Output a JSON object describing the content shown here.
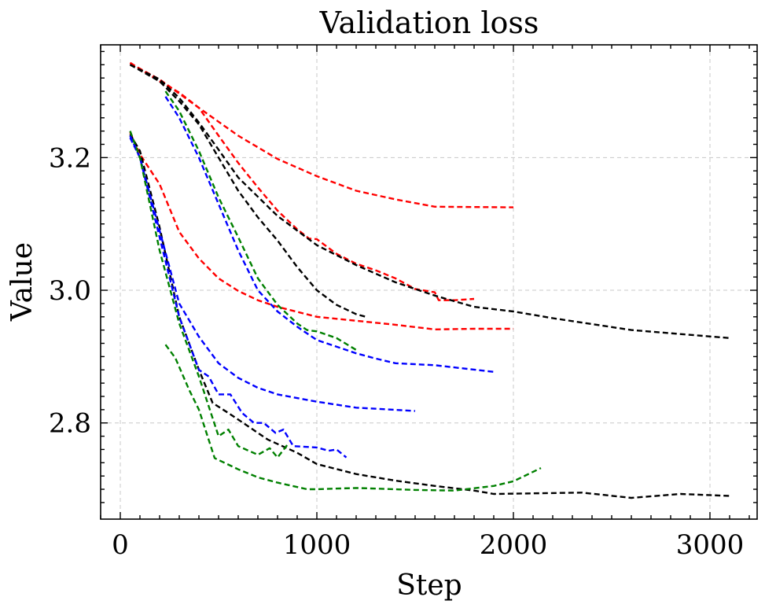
{
  "chart_data": {
    "type": "line",
    "title": "Validation loss",
    "xlabel": "Step",
    "ylabel": "Value",
    "xlim": [
      -100,
      3240
    ],
    "ylim": [
      2.655,
      3.37
    ],
    "xticks": [
      0,
      1000,
      2000,
      3000
    ],
    "yticks": [
      2.8,
      3.0,
      3.2
    ],
    "xtick_labels": [
      "0",
      "1000",
      "2000",
      "3000"
    ],
    "ytick_labels": [
      "2.8",
      "3.0",
      "3.2"
    ],
    "grid": true,
    "line_style": "dashed",
    "series": [
      {
        "color": "#ff0000",
        "points": [
          [
            50,
            3.342
          ],
          [
            200,
            3.318
          ],
          [
            400,
            3.275
          ],
          [
            600,
            3.233
          ],
          [
            800,
            3.198
          ],
          [
            1000,
            3.172
          ],
          [
            1200,
            3.15
          ],
          [
            1400,
            3.137
          ],
          [
            1600,
            3.126
          ],
          [
            2000,
            3.125
          ]
        ]
      },
      {
        "color": "#ff0000",
        "points": [
          [
            50,
            3.343
          ],
          [
            200,
            3.315
          ],
          [
            300,
            3.298
          ],
          [
            400,
            3.275
          ],
          [
            500,
            3.233
          ],
          [
            600,
            3.192
          ],
          [
            700,
            3.155
          ],
          [
            800,
            3.12
          ],
          [
            900,
            3.092
          ],
          [
            960,
            3.078
          ],
          [
            1000,
            3.077
          ],
          [
            1100,
            3.055
          ],
          [
            1200,
            3.04
          ],
          [
            1300,
            3.03
          ],
          [
            1400,
            3.018
          ],
          [
            1500,
            3.002
          ],
          [
            1600,
            2.997
          ],
          [
            1620,
            2.985
          ],
          [
            1700,
            2.985
          ],
          [
            1800,
            2.987
          ]
        ]
      },
      {
        "color": "#ff0000",
        "points": [
          [
            50,
            3.238
          ],
          [
            100,
            3.205
          ],
          [
            200,
            3.16
          ],
          [
            300,
            3.088
          ],
          [
            400,
            3.048
          ],
          [
            500,
            3.018
          ],
          [
            600,
            2.999
          ],
          [
            700,
            2.985
          ],
          [
            800,
            2.975
          ],
          [
            1000,
            2.96
          ],
          [
            1200,
            2.954
          ],
          [
            1400,
            2.948
          ],
          [
            1600,
            2.941
          ],
          [
            1800,
            2.942
          ],
          [
            2000,
            2.942
          ]
        ]
      },
      {
        "color": "#000000",
        "points": [
          [
            50,
            3.34
          ],
          [
            200,
            3.318
          ],
          [
            300,
            3.29
          ],
          [
            400,
            3.253
          ],
          [
            500,
            3.212
          ],
          [
            600,
            3.17
          ],
          [
            800,
            3.112
          ],
          [
            1000,
            3.068
          ],
          [
            1200,
            3.038
          ],
          [
            1400,
            3.012
          ],
          [
            1600,
            2.992
          ],
          [
            1800,
            2.975
          ],
          [
            2000,
            2.968
          ],
          [
            2200,
            2.958
          ],
          [
            2600,
            2.94
          ],
          [
            3100,
            2.928
          ]
        ]
      },
      {
        "color": "#000000",
        "points": [
          [
            50,
            3.34
          ],
          [
            200,
            3.315
          ],
          [
            300,
            3.285
          ],
          [
            400,
            3.25
          ],
          [
            500,
            3.2
          ],
          [
            600,
            3.15
          ],
          [
            700,
            3.11
          ],
          [
            800,
            3.075
          ],
          [
            900,
            3.035
          ],
          [
            1000,
            3.0
          ],
          [
            1100,
            2.978
          ],
          [
            1200,
            2.964
          ],
          [
            1250,
            2.96
          ]
        ]
      },
      {
        "color": "#000000",
        "points": [
          [
            50,
            3.235
          ],
          [
            100,
            3.21
          ],
          [
            200,
            3.095
          ],
          [
            300,
            2.96
          ],
          [
            400,
            2.88
          ],
          [
            470,
            2.83
          ],
          [
            550,
            2.815
          ],
          [
            650,
            2.795
          ],
          [
            750,
            2.775
          ],
          [
            900,
            2.755
          ],
          [
            1000,
            2.738
          ],
          [
            1200,
            2.723
          ],
          [
            1400,
            2.713
          ],
          [
            1600,
            2.705
          ],
          [
            1800,
            2.698
          ],
          [
            1900,
            2.693
          ],
          [
            2350,
            2.695
          ],
          [
            2600,
            2.687
          ],
          [
            2850,
            2.693
          ],
          [
            3100,
            2.69
          ]
        ]
      },
      {
        "color": "#0000ff",
        "points": [
          [
            230,
            3.292
          ],
          [
            300,
            3.26
          ],
          [
            400,
            3.2
          ],
          [
            500,
            3.13
          ],
          [
            600,
            3.06
          ],
          [
            700,
            3.0
          ],
          [
            800,
            2.968
          ],
          [
            900,
            2.945
          ],
          [
            950,
            2.935
          ],
          [
            1000,
            2.925
          ],
          [
            1100,
            2.915
          ],
          [
            1200,
            2.905
          ],
          [
            1300,
            2.897
          ],
          [
            1400,
            2.89
          ],
          [
            1600,
            2.887
          ],
          [
            1900,
            2.877
          ]
        ]
      },
      {
        "color": "#0000ff",
        "points": [
          [
            50,
            3.23
          ],
          [
            100,
            3.2
          ],
          [
            200,
            3.09
          ],
          [
            300,
            2.98
          ],
          [
            400,
            2.93
          ],
          [
            500,
            2.89
          ],
          [
            600,
            2.868
          ],
          [
            700,
            2.853
          ],
          [
            800,
            2.843
          ],
          [
            1000,
            2.832
          ],
          [
            1200,
            2.823
          ],
          [
            1500,
            2.818
          ]
        ]
      },
      {
        "color": "#0000ff",
        "points": [
          [
            50,
            3.233
          ],
          [
            100,
            3.2
          ],
          [
            200,
            3.08
          ],
          [
            300,
            2.96
          ],
          [
            400,
            2.88
          ],
          [
            450,
            2.87
          ],
          [
            500,
            2.843
          ],
          [
            560,
            2.843
          ],
          [
            620,
            2.815
          ],
          [
            680,
            2.8
          ],
          [
            730,
            2.8
          ],
          [
            790,
            2.785
          ],
          [
            830,
            2.79
          ],
          [
            880,
            2.765
          ],
          [
            1000,
            2.763
          ],
          [
            1060,
            2.758
          ],
          [
            1100,
            2.76
          ],
          [
            1150,
            2.748
          ]
        ]
      },
      {
        "color": "#008000",
        "points": [
          [
            230,
            3.3
          ],
          [
            300,
            3.27
          ],
          [
            400,
            3.21
          ],
          [
            500,
            3.14
          ],
          [
            600,
            3.08
          ],
          [
            700,
            3.018
          ],
          [
            800,
            2.978
          ],
          [
            900,
            2.95
          ],
          [
            950,
            2.94
          ],
          [
            1000,
            2.938
          ],
          [
            1100,
            2.928
          ],
          [
            1200,
            2.91
          ]
        ]
      },
      {
        "color": "#008000",
        "points": [
          [
            50,
            3.24
          ],
          [
            100,
            3.2
          ],
          [
            200,
            3.06
          ],
          [
            300,
            2.95
          ],
          [
            400,
            2.87
          ],
          [
            500,
            2.78
          ],
          [
            550,
            2.79
          ],
          [
            600,
            2.765
          ],
          [
            700,
            2.752
          ],
          [
            760,
            2.762
          ],
          [
            800,
            2.748
          ],
          [
            850,
            2.767
          ]
        ]
      },
      {
        "color": "#008000",
        "points": [
          [
            230,
            2.918
          ],
          [
            280,
            2.898
          ],
          [
            350,
            2.85
          ],
          [
            400,
            2.82
          ],
          [
            480,
            2.747
          ],
          [
            600,
            2.73
          ],
          [
            700,
            2.718
          ],
          [
            800,
            2.71
          ],
          [
            950,
            2.7
          ],
          [
            1000,
            2.7
          ],
          [
            1200,
            2.702
          ],
          [
            1500,
            2.699
          ],
          [
            1700,
            2.698
          ],
          [
            1900,
            2.705
          ],
          [
            2000,
            2.712
          ],
          [
            2140,
            2.732
          ]
        ]
      }
    ]
  }
}
